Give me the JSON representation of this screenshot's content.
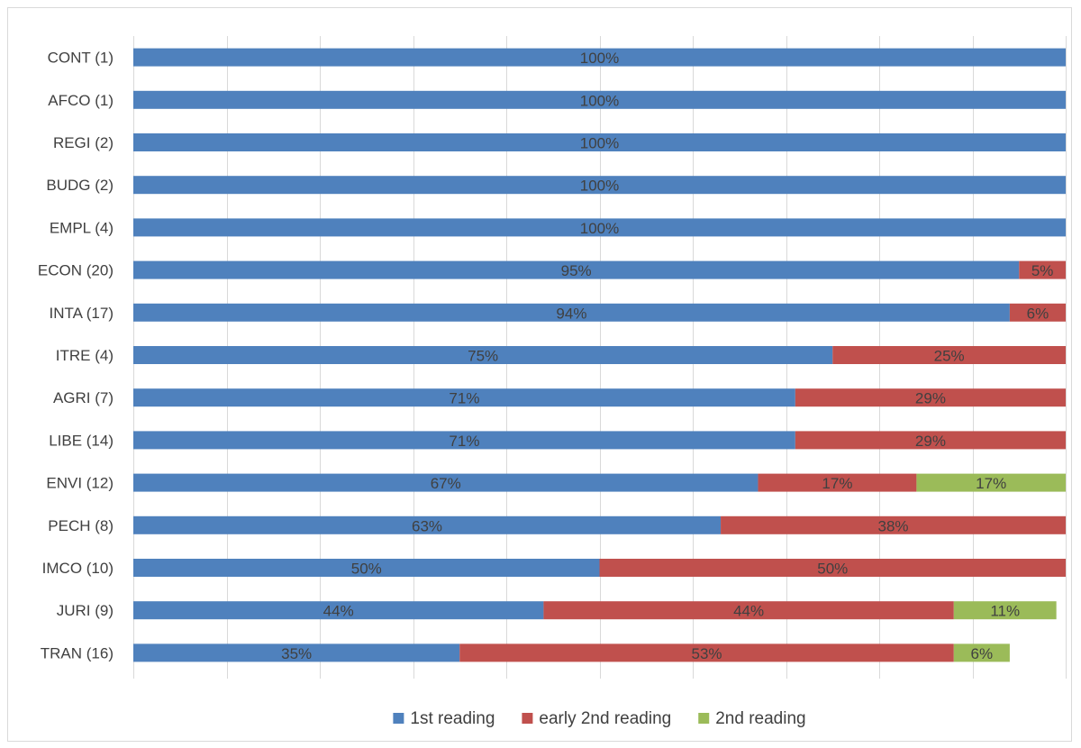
{
  "chart_data": {
    "type": "bar",
    "orientation": "horizontal",
    "stacked": true,
    "percent": true,
    "title": "",
    "xlabel": "",
    "ylabel": "",
    "xlim": [
      0,
      100
    ],
    "grid": true,
    "legend_position": "bottom",
    "categories": [
      "CONT (1)",
      "AFCO (1)",
      "REGI (2)",
      "BUDG (2)",
      "EMPL (4)",
      "ECON (20)",
      "INTA (17)",
      "ITRE (4)",
      "AGRI (7)",
      "LIBE (14)",
      "ENVI (12)",
      "PECH (8)",
      "IMCO (10)",
      "JURI (9)",
      "TRAN (16)"
    ],
    "series": [
      {
        "name": "1st reading",
        "color": "#4f81bd",
        "values": [
          100,
          100,
          100,
          100,
          100,
          95,
          94,
          75,
          71,
          71,
          67,
          63,
          50,
          44,
          35
        ],
        "labels": [
          "100%",
          "100%",
          "100%",
          "100%",
          "100%",
          "95%",
          "94%",
          "75%",
          "71%",
          "71%",
          "67%",
          "63%",
          "50%",
          "44%",
          "35%"
        ]
      },
      {
        "name": "early 2nd reading",
        "color": "#c0504d",
        "values": [
          0,
          0,
          0,
          0,
          0,
          5,
          6,
          25,
          29,
          29,
          17,
          38,
          50,
          44,
          53
        ],
        "labels": [
          "",
          "",
          "",
          "",
          "",
          "5%",
          "6%",
          "25%",
          "29%",
          "29%",
          "17%",
          "38%",
          "50%",
          "44%",
          "53%"
        ]
      },
      {
        "name": "2nd reading",
        "color": "#9bbb59",
        "values": [
          0,
          0,
          0,
          0,
          0,
          0,
          0,
          0,
          0,
          0,
          17,
          0,
          0,
          11,
          6
        ],
        "labels": [
          "",
          "",
          "",
          "",
          "",
          "",
          "",
          "",
          "",
          "",
          "17%",
          "",
          "",
          "11%",
          "6%"
        ]
      }
    ]
  }
}
